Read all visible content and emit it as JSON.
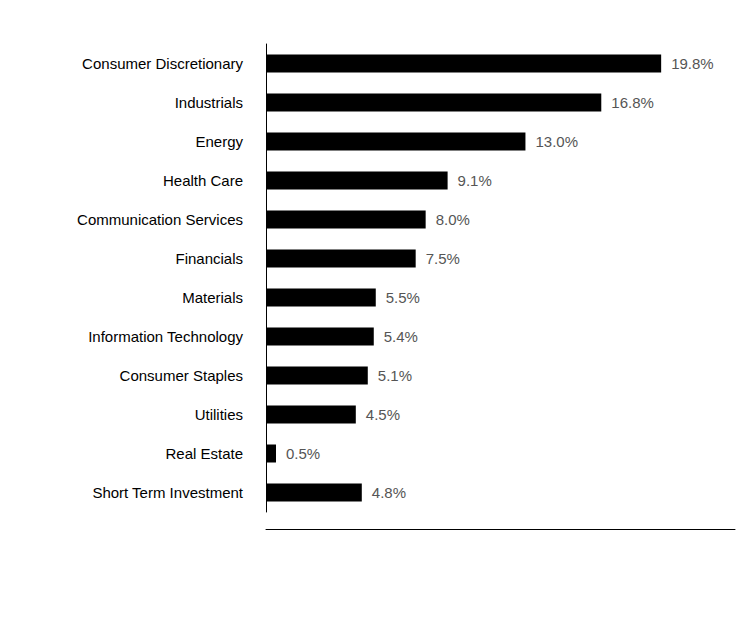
{
  "chart_data": {
    "type": "bar",
    "orientation": "horizontal",
    "categories": [
      "Consumer Discretionary",
      "Industrials",
      "Energy",
      "Health Care",
      "Communication Services",
      "Financials",
      "Materials",
      "Information Technology",
      "Consumer Staples",
      "Utilities",
      "Real Estate",
      "Short Term Investment"
    ],
    "values": [
      19.8,
      16.8,
      13.0,
      9.1,
      8.0,
      7.5,
      5.5,
      5.4,
      5.1,
      4.5,
      0.5,
      4.8
    ],
    "value_labels": [
      "19.8%",
      "16.8%",
      "13.0%",
      "9.1%",
      "8.0%",
      "7.5%",
      "5.5%",
      "5.4%",
      "5.1%",
      "4.5%",
      "0.5%",
      "4.8%"
    ],
    "color": "#000000",
    "xlim": [
      0,
      23.5
    ],
    "grid": false,
    "data_labels": true,
    "tick_labels": "y"
  }
}
